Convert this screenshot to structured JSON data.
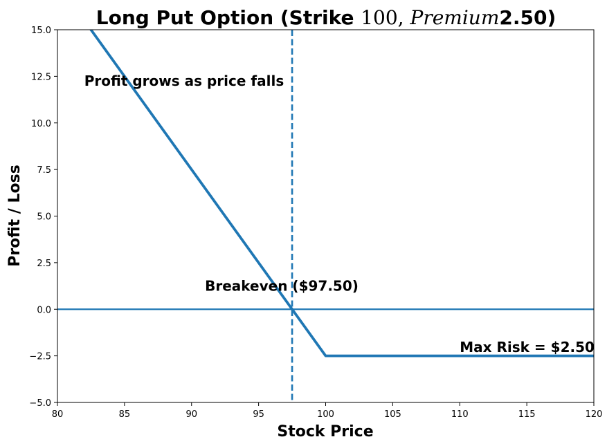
{
  "chart_data": {
    "type": "line",
    "title_parts": [
      {
        "text": "Long Put Option (Strike ",
        "style": "bold"
      },
      {
        "text": "100, ",
        "style": "math"
      },
      {
        "text": "Premium",
        "style": "math-italic"
      },
      {
        "text": "2.50)",
        "style": "bold"
      }
    ],
    "xlabel": "Stock Price",
    "ylabel": "Profit / Loss",
    "xlim": [
      80,
      120
    ],
    "ylim": [
      -5,
      15
    ],
    "xticks": [
      80,
      85,
      90,
      95,
      100,
      105,
      110,
      115,
      120
    ],
    "yticks": [
      -5.0,
      -2.5,
      0.0,
      2.5,
      5.0,
      7.5,
      10.0,
      12.5,
      15.0
    ],
    "xtick_labels": [
      "80",
      "85",
      "90",
      "95",
      "100",
      "105",
      "110",
      "115",
      "120"
    ],
    "ytick_labels": [
      "−5.0",
      "−2.5",
      "0.0",
      "2.5",
      "5.0",
      "7.5",
      "10.0",
      "12.5",
      "15.0"
    ],
    "grid": false,
    "series": [
      {
        "x": [
          80,
          100,
          120
        ],
        "y": [
          17.5,
          -2.5,
          -2.5
        ],
        "color": "#1f77b4"
      }
    ],
    "reference_lines": [
      {
        "orientation": "horizontal",
        "value": 0,
        "style": "solid",
        "color": "#1f77b4"
      },
      {
        "orientation": "vertical",
        "value": 97.5,
        "style": "dashed",
        "color": "#1f77b4"
      }
    ],
    "annotations": [
      {
        "text": "Profit grows as price falls",
        "x": 82,
        "y": 12
      },
      {
        "text": "Breakeven ($97.50)",
        "x": 91,
        "y": 1
      },
      {
        "text": "Max Risk = $2.50",
        "x": 110,
        "y": -2.3
      }
    ]
  }
}
